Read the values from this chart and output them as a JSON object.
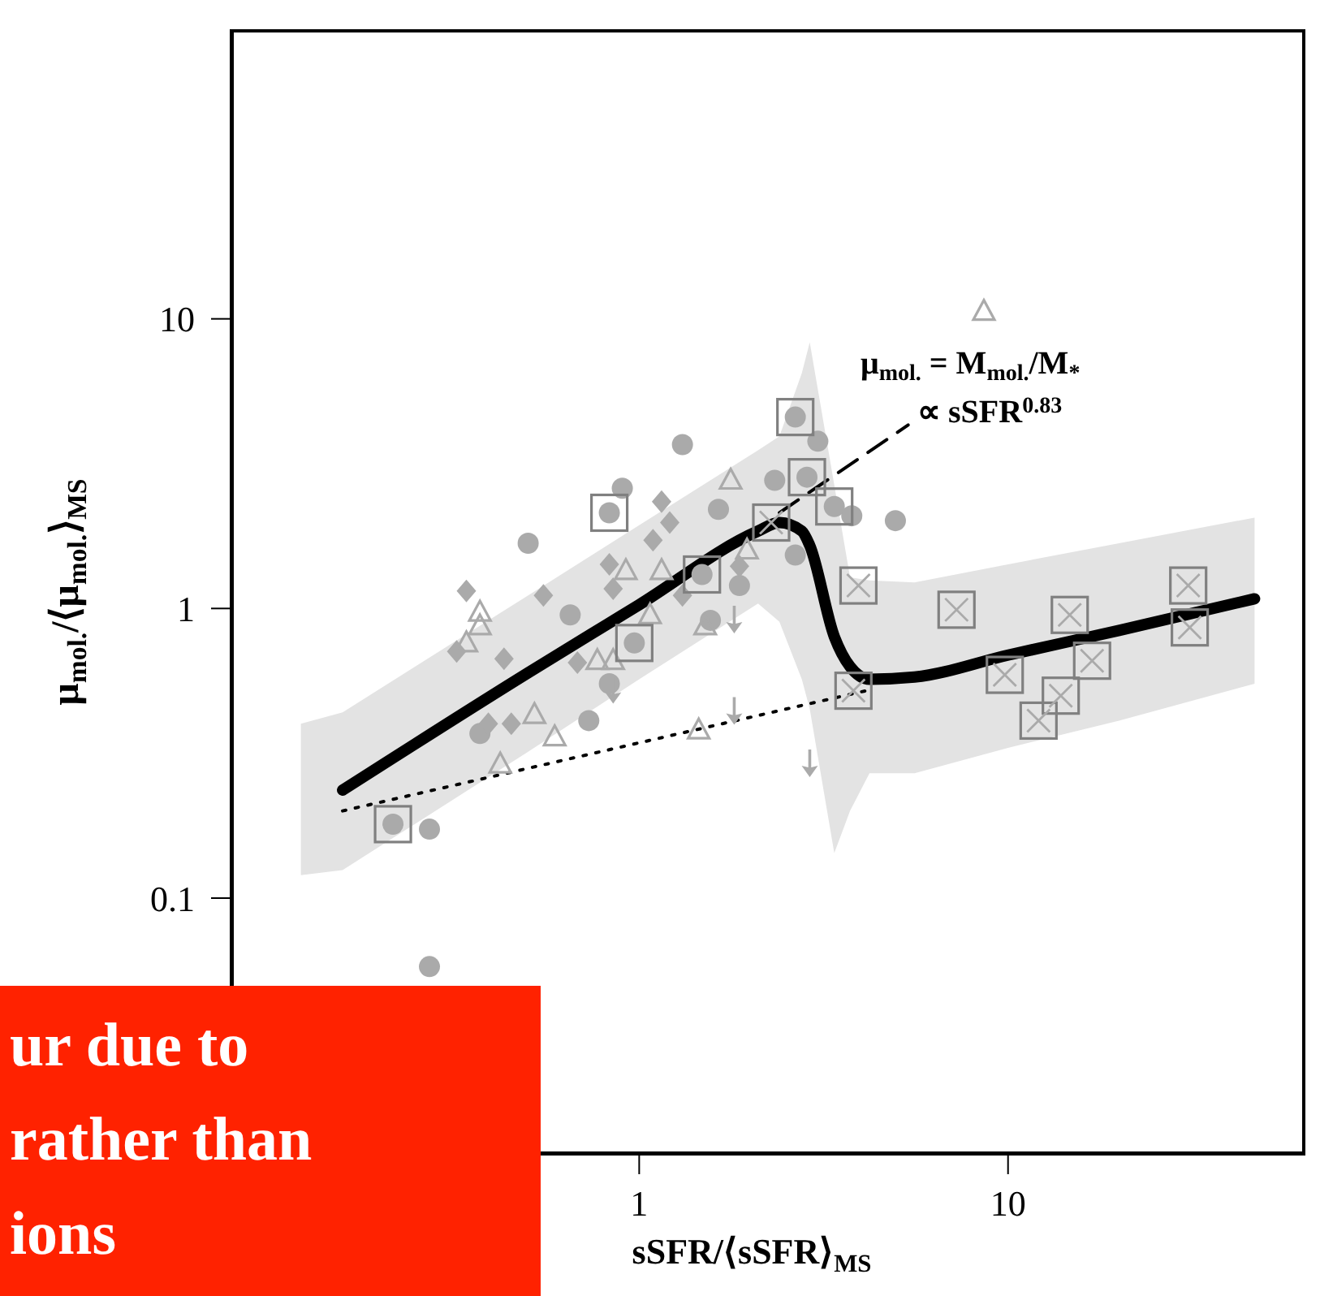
{
  "chart_data": {
    "type": "scatter",
    "xlabel": "sSFR/⟨sSFR⟩$_{MS}$",
    "ylabel": "μ$_{mol.}$/⟨μ$_{mol.}$⟩$_{MS}$",
    "log": "xy",
    "xlim": [
      0.078,
      64
    ],
    "xticks": [
      {
        "value": 0.1,
        "label": null
      },
      1,
      10
    ],
    "ylim": [
      0.013,
      100
    ],
    "yticks": [
      0.1,
      1,
      10
    ],
    "annotations": [
      "ur due to\nrather than\nions",
      "μ$_{mol.}$ = M$_{mol.}$/M$_{*}$",
      "∝ sSFR$^{0.83}$"
    ],
    "series": [
      {
        "type": "line",
        "color": "#000000",
        "x": [
          0.121,
          0.157,
          0.5,
          1,
          2.1,
          2.4,
          2.76,
          2.9,
          3.38,
          3.73,
          4.21,
          5.58,
          10,
          20,
          46.6
        ],
        "values": [
          null,
          0.236,
          0.6,
          1.03,
          1.85,
          1.98,
          1.85,
          1.65,
          0.8,
          0.63,
          0.57,
          0.58,
          0.69,
          0.84,
          1.08
        ],
        "lower": [
          0.12,
          0.125,
          0.32,
          0.57,
          1.04,
          0.9,
          0.57,
          0.45,
          0.143,
          0.2,
          0.27,
          0.27,
          0.33,
          0.41,
          0.55
        ],
        "upper": [
          0.4,
          0.438,
          1.11,
          1.94,
          3.52,
          3.93,
          6.5,
          8.3,
          2.67,
          1.28,
          1.25,
          1.23,
          1.42,
          1.68,
          2.06
        ]
      },
      {
        "type": "line",
        "color": "#000000",
        "line_style": "dotted",
        "x": [
          0.157,
          4.12
        ],
        "values": [
          0.2,
          0.52
        ]
      },
      {
        "type": "line",
        "color": "#000000",
        "line_style": "dashed",
        "x": [
          2.4,
          5.36
        ],
        "values": [
          2.14,
          4.3
        ]
      },
      {
        "marker": "circle",
        "color": "#aaaaaa",
        "x": [
          1.31,
          0.9,
          0.5,
          1.64,
          2.33,
          3.05,
          4.95,
          2.65,
          1.87,
          1.56,
          0.73,
          0.27,
          0.65,
          0.83,
          0.37,
          3.77,
          0.27,
          2.65,
          2.85,
          0.83,
          0.97,
          0.215,
          3.38,
          1.48
        ],
        "values": [
          3.68,
          2.6,
          1.68,
          2.2,
          2.77,
          3.78,
          2.01,
          1.53,
          1.2,
          0.91,
          0.41,
          0.173,
          0.95,
          0.55,
          0.37,
          2.09,
          0.058,
          4.58,
          2.84,
          2.14,
          0.76,
          0.18,
          2.25,
          1.31
        ]
      },
      {
        "marker": "diamond",
        "color": "#aaaaaa",
        "x": [
          0.34,
          1.15,
          0.83,
          0.68,
          0.43,
          0.32,
          0.39,
          1.21,
          1.09,
          0.85,
          0.45,
          1.87,
          1.31,
          0.55
        ],
        "values": [
          1.15,
          2.34,
          1.42,
          0.65,
          0.67,
          0.71,
          0.4,
          1.98,
          1.72,
          1.17,
          0.4,
          1.4,
          1.11,
          1.11
        ]
      },
      {
        "marker": "triangle",
        "color": "#aaaaaa",
        "x": [
          0.37,
          0.37,
          0.34,
          0.92,
          1.15,
          1.07,
          1.51,
          0.52,
          0.59,
          0.42,
          1.45,
          0.77,
          0.85,
          1.96,
          1.77,
          8.6
        ],
        "values": [
          0.97,
          0.87,
          0.76,
          1.35,
          1.35,
          0.95,
          0.87,
          0.43,
          0.36,
          0.29,
          0.38,
          0.66,
          0.66,
          1.59,
          2.77,
          10.6
        ]
      },
      {
        "marker": "square",
        "color": "#808080",
        "x": [
          2.65,
          2.85,
          0.83,
          0.97,
          0.215,
          3.38,
          1.48,
          3.93,
          7.25,
          14.7,
          30.8,
          31.1,
          9.8,
          16.9,
          13.9,
          12.1,
          3.81,
          2.28
        ],
        "values": [
          4.58,
          2.84,
          2.14,
          0.76,
          0.18,
          2.25,
          1.31,
          1.2,
          0.99,
          0.95,
          1.2,
          0.86,
          0.59,
          0.66,
          0.5,
          0.41,
          0.52,
          1.98
        ]
      },
      {
        "marker": "cross",
        "color": "#aaaaaa",
        "x": [
          3.93,
          7.25,
          14.7,
          30.8,
          31.1,
          9.8,
          16.9,
          13.9,
          12.1,
          3.81,
          2.28
        ],
        "values": [
          1.2,
          0.99,
          0.95,
          1.2,
          0.86,
          0.59,
          0.66,
          0.5,
          0.41,
          0.52,
          1.98
        ]
      },
      {
        "color": "#aaaaaa",
        "x": [
          1.81,
          1.81,
          2.9,
          0.85
        ],
        "values": [
          0.91,
          0.44,
          0.29,
          0.52
        ]
      }
    ]
  }
}
